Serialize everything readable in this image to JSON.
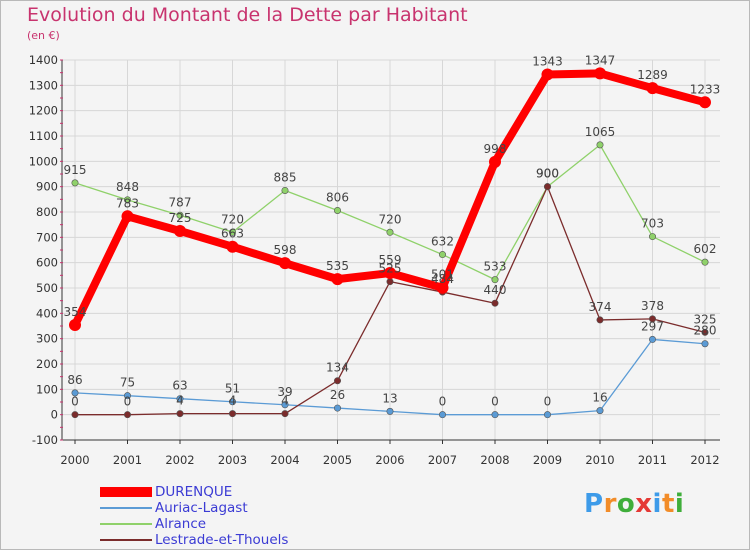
{
  "title": "Evolution du Montant de la Dette par Habitant",
  "unit_label": "(en €)",
  "logo": {
    "text": "Proxiti",
    "colors": [
      "#3d9be9",
      "#f28c28",
      "#3fae3a",
      "#e53935",
      "#3d9be9",
      "#f28c28",
      "#3fae3a"
    ]
  },
  "colors": {
    "title": "#c8336e",
    "background": "#f4f4f4",
    "grid": "#d7d7d7",
    "axis": "#333333",
    "legend_text": "#3b3bd4"
  },
  "chart_data": {
    "type": "line",
    "title": "Evolution du Montant de la Dette par Habitant",
    "ylabel": "(en €)",
    "xlabel": "",
    "x": [
      "2000",
      "2001",
      "2002",
      "2003",
      "2004",
      "2005",
      "2006",
      "2007",
      "2008",
      "2009",
      "2010",
      "2011",
      "2012"
    ],
    "ylim": [
      -100,
      1400
    ],
    "yticks": [
      -100,
      0,
      100,
      200,
      300,
      400,
      500,
      600,
      700,
      800,
      900,
      1000,
      1100,
      1200,
      1300,
      1400
    ],
    "grid": true,
    "legend_position": "bottom-left",
    "series": [
      {
        "name": "Auriac-Lagast",
        "color": "#5b9bd5",
        "values": [
          86,
          75,
          63,
          51,
          39,
          26,
          13,
          0,
          0,
          0,
          16,
          297,
          280
        ]
      },
      {
        "name": "Alrance",
        "color": "#8fd16a",
        "values": [
          915,
          848,
          787,
          720,
          885,
          806,
          720,
          632,
          533,
          900,
          1065,
          703,
          602
        ]
      },
      {
        "name": "Lestrade-et-Thouels",
        "color": "#7b2c2c",
        "values": [
          0,
          0,
          4,
          4,
          4,
          134,
          525,
          484,
          440,
          900,
          374,
          378,
          325
        ]
      },
      {
        "name": "DURENQUE",
        "color": "#ff0000",
        "values": [
          354,
          783,
          725,
          663,
          598,
          535,
          559,
          501,
          998,
          1343,
          1347,
          1289,
          1233
        ]
      }
    ]
  }
}
